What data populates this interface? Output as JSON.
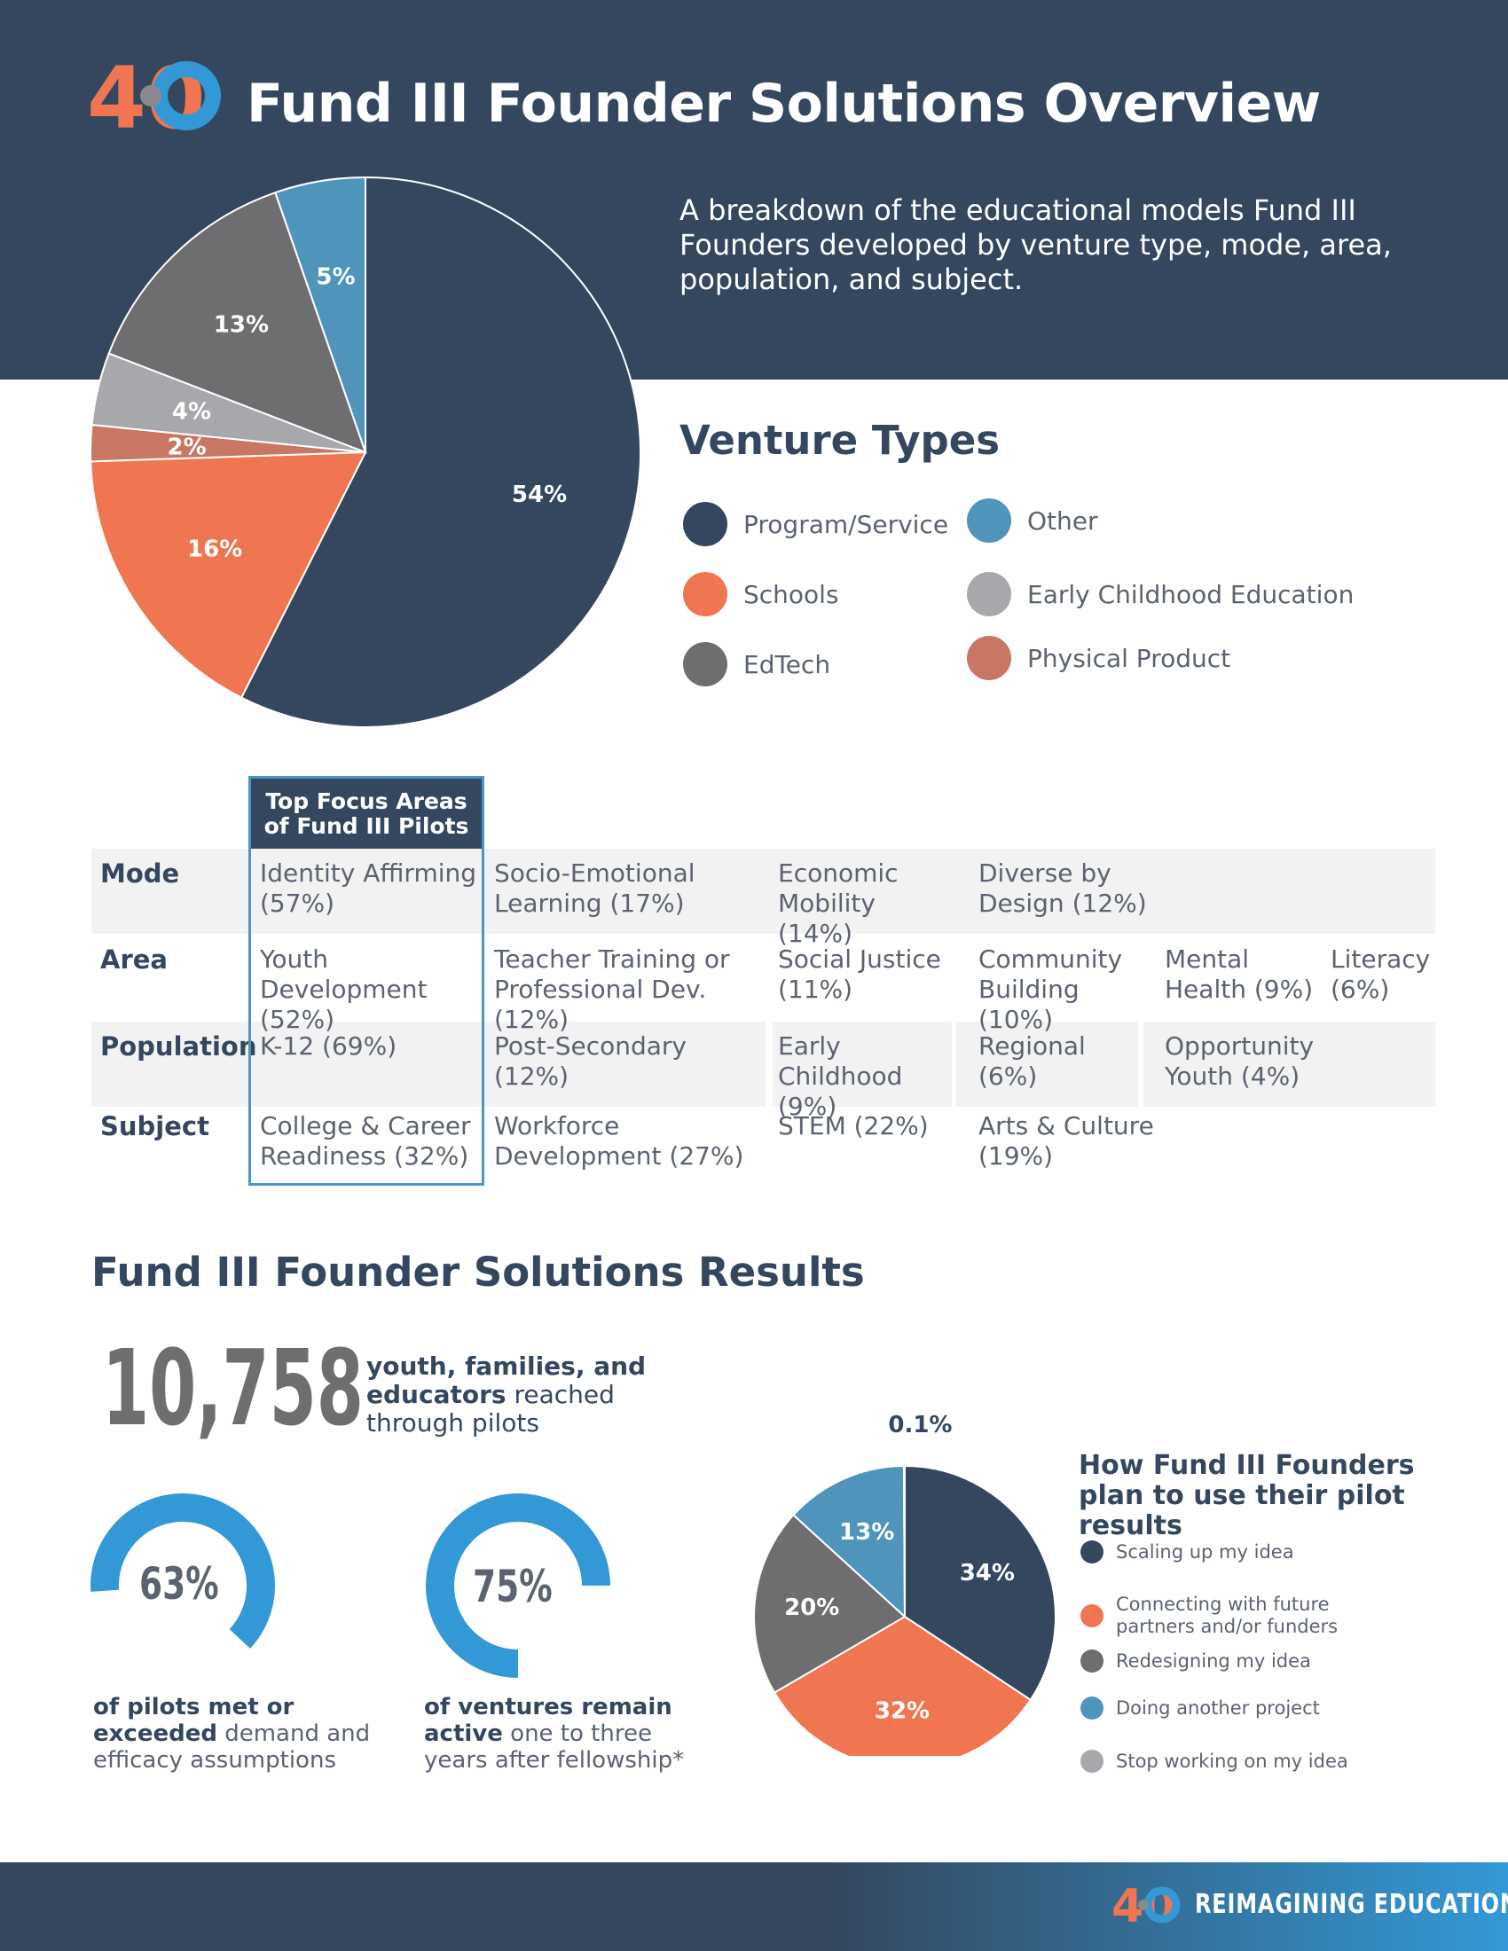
{
  "header": {
    "title": "Fund III Founder Solutions Overview",
    "subtitle": "A breakdown of the educational models Fund III Founders developed by venture type, mode, area, population, and subject."
  },
  "colors": {
    "navy": "#34475e",
    "orange": "#ef7650",
    "gray": "#6e6e70",
    "blue": "#4f95bb",
    "light_gray": "#a7a8ab",
    "terracotta": "#c87764",
    "accent_blue": "#3399d6"
  },
  "venture_types": {
    "title": "Venture Types"
  },
  "chart_data": [
    {
      "type": "pie",
      "title": "Venture Types",
      "slices": [
        {
          "label": "Program/Service",
          "value": 54,
          "display": "54%",
          "color": "#34475e"
        },
        {
          "label": "Schools",
          "value": 16,
          "display": "16%",
          "color": "#ef7650"
        },
        {
          "label": "Physical Product",
          "value": 2,
          "display": "2%",
          "color": "#c87764"
        },
        {
          "label": "Early Childhood Education",
          "value": 4,
          "display": "4%",
          "color": "#a7a8ab"
        },
        {
          "label": "EdTech",
          "value": 13,
          "display": "13%",
          "color": "#6e6e70"
        },
        {
          "label": "Other",
          "value": 5,
          "display": "5%",
          "color": "#4f95bb"
        }
      ],
      "legend": [
        {
          "label": "Program/Service",
          "color": "#34475e"
        },
        {
          "label": "Schools",
          "color": "#ef7650"
        },
        {
          "label": "EdTech",
          "color": "#6e6e70"
        },
        {
          "label": "Other",
          "color": "#4f95bb"
        },
        {
          "label": "Early Childhood Education",
          "color": "#a7a8ab"
        },
        {
          "label": "Physical Product",
          "color": "#c87764"
        }
      ],
      "legend_position": "right"
    },
    {
      "type": "pie",
      "title": "How Fund III Founders plan to use their pilot results",
      "slices": [
        {
          "label": "Scaling up my idea",
          "value": 34,
          "display": "34%",
          "color": "#34475e"
        },
        {
          "label": "Connecting with future partners and/or funders",
          "value": 32,
          "display": "32%",
          "color": "#ef7650"
        },
        {
          "label": "Redesigning my idea",
          "value": 20,
          "display": "20%",
          "color": "#6e6e70"
        },
        {
          "label": "Doing another project",
          "value": 13,
          "display": "13%",
          "color": "#4f95bb"
        },
        {
          "label": "Stop working on my idea",
          "value": 0.1,
          "display": "0.1%",
          "color": "#a7a8ab"
        }
      ],
      "legend_position": "right"
    },
    {
      "type": "donut",
      "value": 63,
      "display": "63%",
      "caption_bold": "of pilots met or exceeded",
      "caption_rest": " demand and efficacy assumptions",
      "color": "#3399d6"
    },
    {
      "type": "donut",
      "value": 75,
      "display": "75%",
      "caption_bold": "of ventures remain active",
      "caption_rest": " one to three years after fellowship*",
      "color": "#3399d6"
    }
  ],
  "focus_table": {
    "highlight_header": "Top Focus Areas of Fund III Pilots",
    "rows": [
      {
        "label": "Mode",
        "cells": [
          "Identity Affirming (57%)",
          "Socio-Emotional Learning (17%)",
          "Economic Mobility (14%)",
          "Diverse by Design (12%)"
        ]
      },
      {
        "label": "Area",
        "cells": [
          "Youth Development (52%)",
          "Teacher Training or Professional Dev. (12%)",
          "Social Justice (11%)",
          "Community Building (10%)",
          "Mental Health (9%)",
          "Literacy (6%)"
        ]
      },
      {
        "label": "Population",
        "cells": [
          "K-12 (69%)",
          "Post-Secondary (12%)",
          "Early Childhood (9%)",
          "Regional (6%)",
          "Opportunity Youth (4%)"
        ]
      },
      {
        "label": "Subject",
        "cells": [
          "College & Career Readiness (32%)",
          "Workforce Development (27%)",
          "STEM (22%)",
          "Arts & Culture (19%)"
        ]
      }
    ]
  },
  "results": {
    "title": "Fund III Founder Solutions Results",
    "big_number": "10,758",
    "big_number_caption_bold": "youth, families, and educators",
    "big_number_caption_rest": " reached through pilots",
    "plan_title": "How Fund III Founders plan to use their pilot results"
  },
  "logo": {
    "text": "40"
  },
  "footer": {
    "text": "REIMAGINING EDUCATION"
  }
}
